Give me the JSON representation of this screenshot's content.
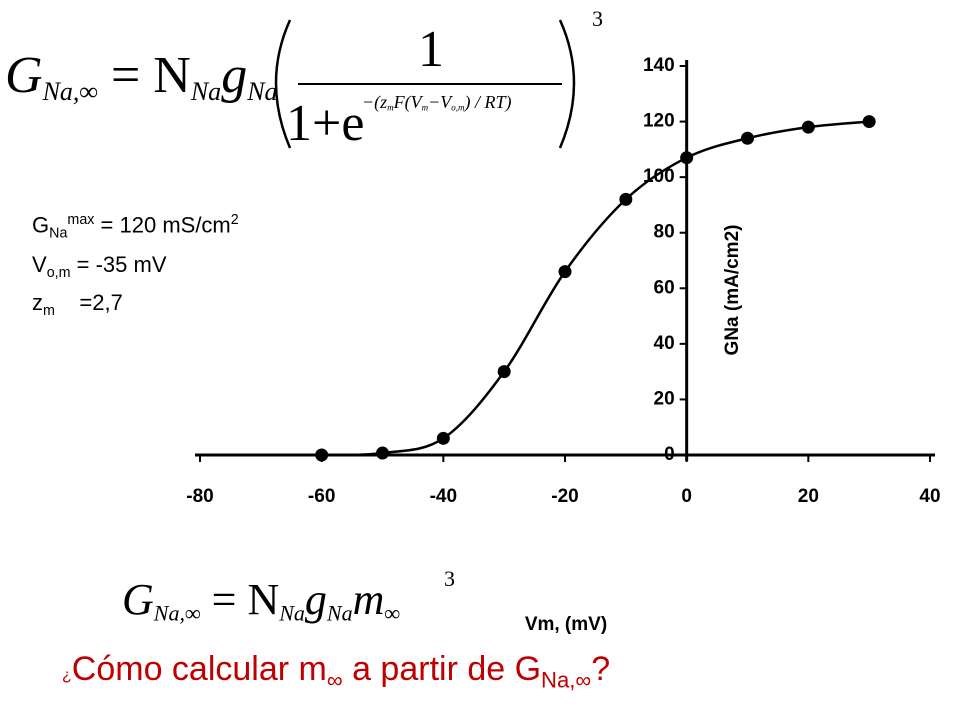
{
  "chart_data": {
    "type": "scatter",
    "x": [
      -60,
      -50,
      -40,
      -30,
      -20,
      -10,
      0,
      10,
      20,
      30
    ],
    "series": [
      {
        "color": "#000000",
        "values": [
          0,
          0.7,
          6,
          30,
          66,
          92,
          107,
          114,
          118,
          120
        ]
      }
    ],
    "x_label": "Vm, (mV)",
    "y_label": "GNa (mA/cm2)",
    "xlim": [
      -80,
      40
    ],
    "xticks": [
      -80,
      -60,
      -40,
      -20,
      0,
      20,
      40
    ],
    "ylim": [
      0,
      140
    ],
    "yticks": [
      0,
      20,
      40,
      60,
      80,
      100,
      120,
      140
    ],
    "smooth_line": true,
    "grid": false
  },
  "formula_top": {
    "g": "G",
    "g_sub": "Na,∞",
    "eq": "= N",
    "n_sub": "Na",
    "gl": "g",
    "gl_sub": "Na",
    "numerator": "1",
    "denominator": "1+e",
    "exp_a": "−(z",
    "exp_b": "m",
    "exp_c": "F(V",
    "exp_d": "m",
    "exp_e": "−V",
    "exp_f": "o,m",
    "exp_g": ") / RT)",
    "power": "3"
  },
  "parameters": {
    "g": "G",
    "g_sub": "Na",
    "g_sup": "max",
    "g_val": " = 120 mS/cm",
    "g_unit_sup": "2",
    "v": "V",
    "v_sub": "o,m",
    "v_val": " = -35 mV",
    "z": "z",
    "z_sub": "m",
    "z_val": " =2,7"
  },
  "formula_bottom": {
    "g": "G",
    "g_sub": "Na,∞",
    "eq": "= N",
    "n_sub": "Na",
    "gl": "g",
    "gl_sub": "Na",
    "m": "m",
    "m_sub": "∞",
    "power": "3"
  },
  "question": {
    "open": "¿",
    "a": "Cómo calcular m",
    "a_sub": "∞",
    "b": " a partir de G",
    "b_sub": "Na,∞",
    "end": "?"
  }
}
